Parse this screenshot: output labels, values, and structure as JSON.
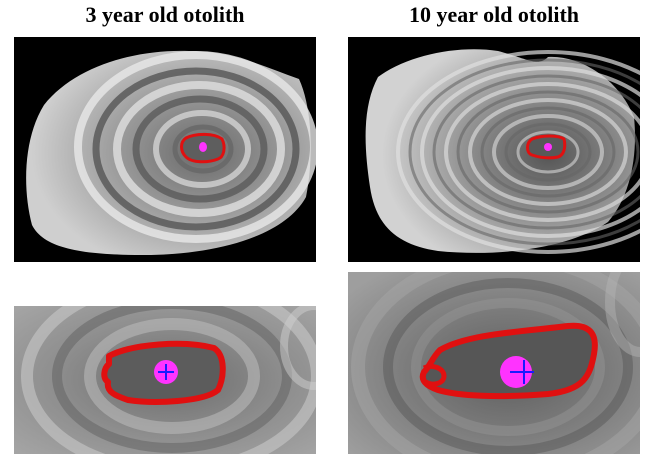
{
  "figure": {
    "left_title": "3 year old otolith",
    "right_title": "10 year old otolith"
  },
  "colors": {
    "background": "#000000",
    "otolith_light": "#d8d8d8",
    "otolith_dark": "#5a5a5a",
    "nucleus_outline": "#e01010",
    "nucleus_fill": "#ff33ff",
    "center_marker": "#1a1aff"
  },
  "panels": [
    {
      "name": "3-year-otolith-full",
      "view": "full"
    },
    {
      "name": "10-year-otolith-full",
      "view": "full"
    },
    {
      "name": "3-year-otolith-nucleus-zoom",
      "view": "zoom"
    },
    {
      "name": "10-year-otolith-nucleus-zoom",
      "view": "zoom"
    }
  ]
}
